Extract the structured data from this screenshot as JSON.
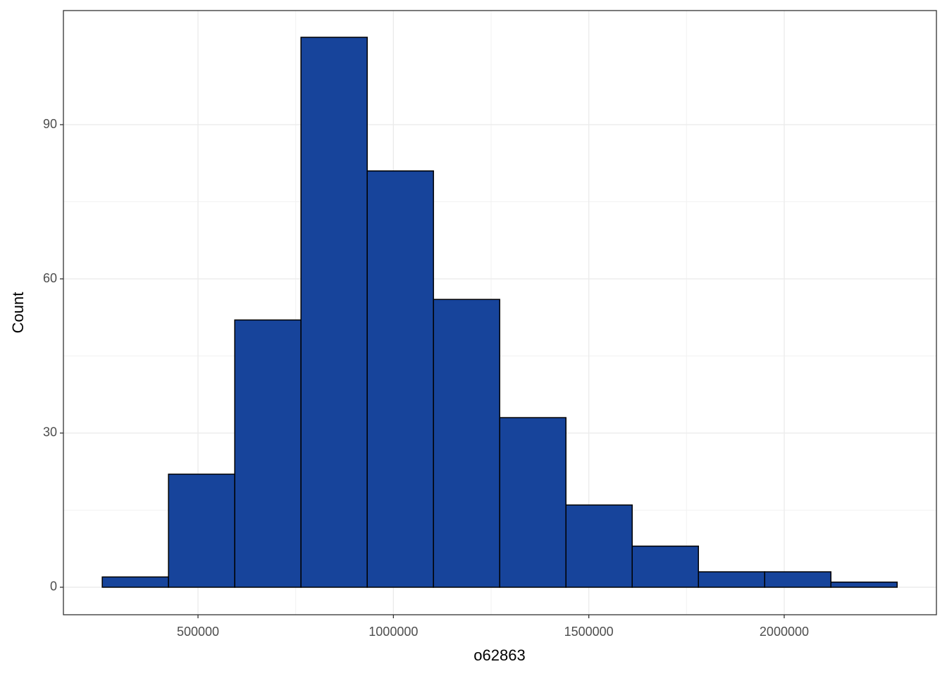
{
  "chart_data": {
    "type": "histogram",
    "x_label": "o62863",
    "y_label": "Count",
    "bins": [
      255000,
      424500,
      594000,
      763500,
      933000,
      1102500,
      1272000,
      1441500,
      1611000,
      1780500,
      1950000,
      2119500,
      2289000
    ],
    "values": [
      2,
      22,
      52,
      107,
      81,
      56,
      33,
      16,
      8,
      3,
      3,
      1
    ],
    "color": "#17449b",
    "edge_color": "#000000",
    "xlim": [
      155600,
      2389500
    ],
    "ylim": [
      -5.35,
      112.2
    ],
    "xticks": [
      500000,
      1000000,
      1500000,
      2000000
    ],
    "yticks": [
      0,
      30,
      60,
      90
    ],
    "grid": true
  }
}
